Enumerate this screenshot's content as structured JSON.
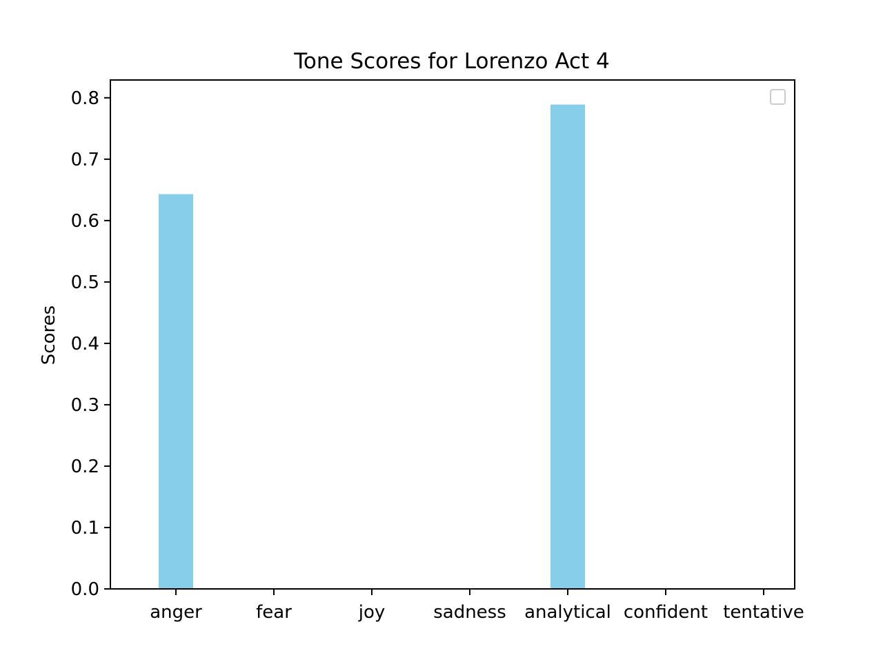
{
  "chart_data": {
    "type": "bar",
    "title": "Tone Scores for Lorenzo Act 4",
    "xlabel": "",
    "ylabel": "Scores",
    "categories": [
      "anger",
      "fear",
      "joy",
      "sadness",
      "analytical",
      "confident",
      "tentative"
    ],
    "values": [
      0.643,
      0,
      0,
      0,
      0.789,
      0,
      0
    ],
    "ylim": [
      0,
      0.829
    ],
    "yticks": [
      "0.0",
      "0.1",
      "0.2",
      "0.3",
      "0.4",
      "0.5",
      "0.6",
      "0.7",
      "0.8"
    ],
    "bar_color": "#87ceeb",
    "grid": false,
    "legend": {
      "placement": "top-right",
      "entries": []
    }
  }
}
